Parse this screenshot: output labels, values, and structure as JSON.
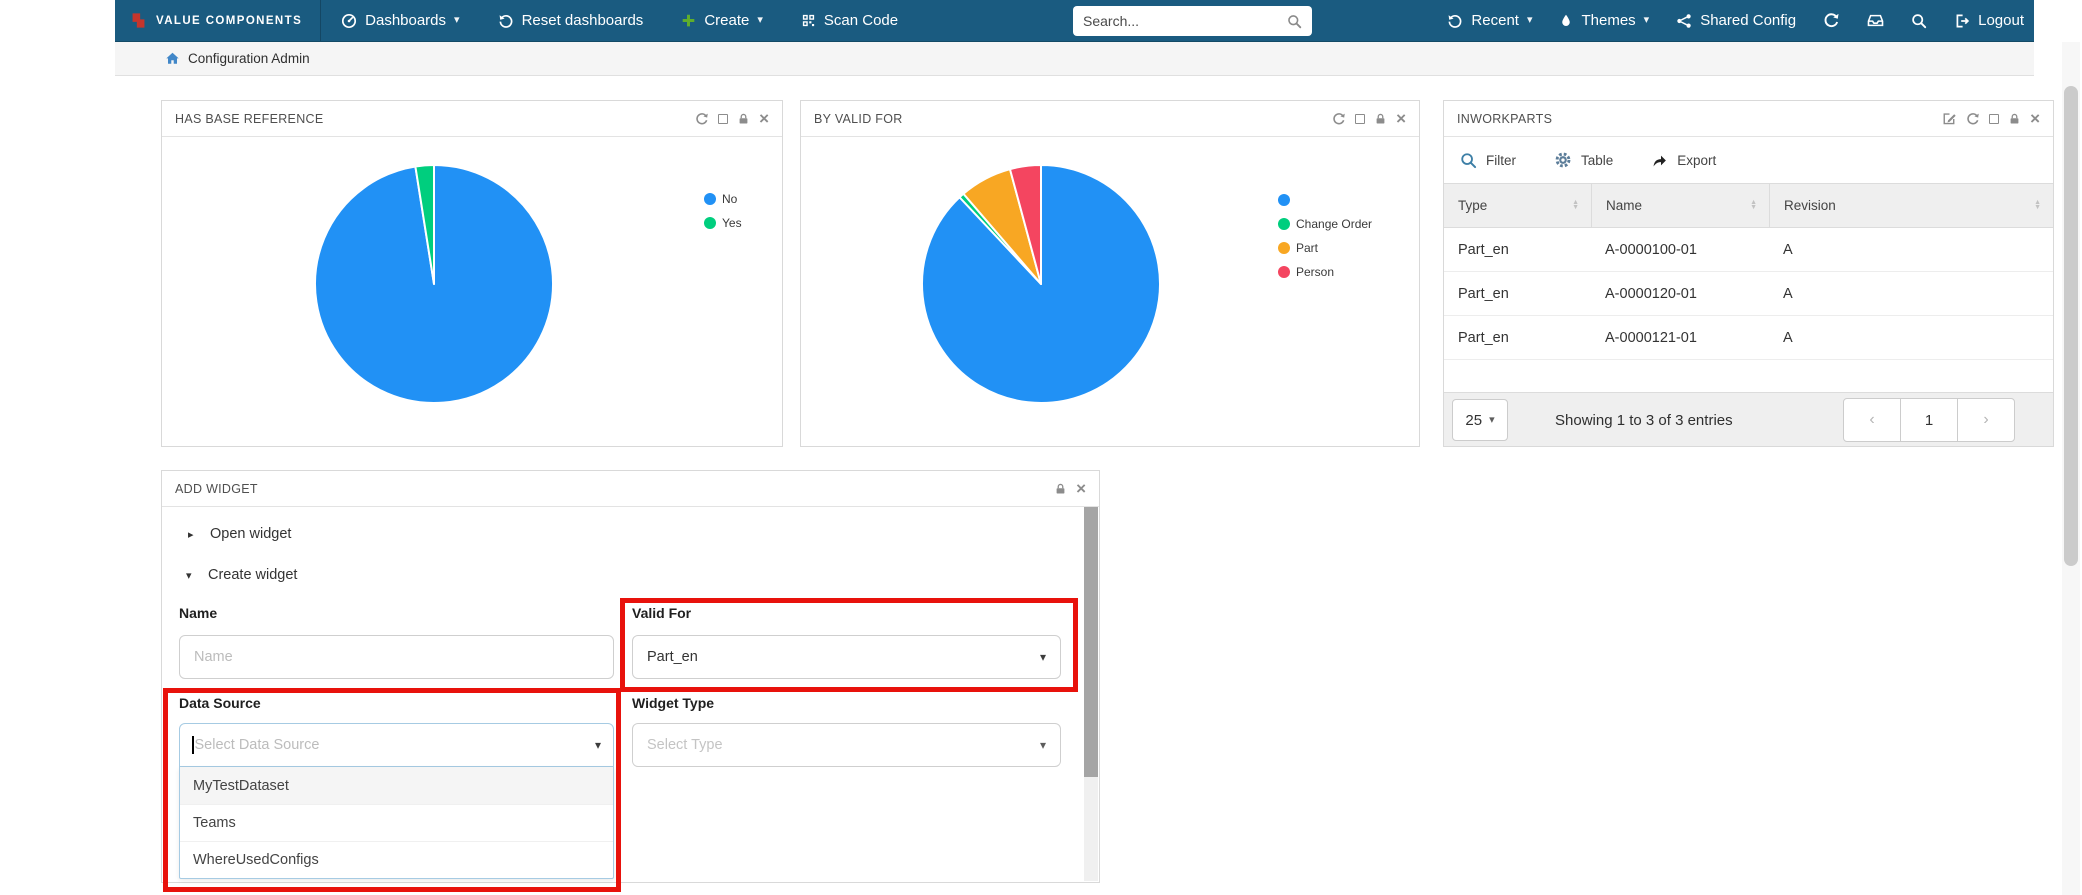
{
  "nav": {
    "brand": "VALUE COMPONENTS",
    "dashboards": "Dashboards",
    "reset_dashboards": "Reset dashboards",
    "create": "Create",
    "scan_code": "Scan Code",
    "search_placeholder": "Search...",
    "recent": "Recent",
    "themes": "Themes",
    "shared_config": "Shared Config",
    "logout": "Logout"
  },
  "breadcrumb": {
    "label": "Configuration Admin"
  },
  "glyphs": {
    "caret_down": "▾",
    "triangle_right": "▸",
    "triangle_down": "▾",
    "close": "×",
    "chevron_left": "‹",
    "chevron_right": "›",
    "sort_up": "▲",
    "sort_down": "▼"
  },
  "widgets": {
    "has_base_reference": {
      "title": "HAS BASE REFERENCE"
    },
    "by_valid_for": {
      "title": "BY VALID FOR"
    },
    "inworkparts": {
      "title": "INWORKPARTS",
      "toolbar": {
        "filter": "Filter",
        "table": "Table",
        "export": "Export"
      },
      "columns": [
        "Type",
        "Name",
        "Revision"
      ],
      "rows": [
        [
          "Part_en",
          "A-0000100-01",
          "A"
        ],
        [
          "Part_en",
          "A-0000120-01",
          "A"
        ],
        [
          "Part_en",
          "A-0000121-01",
          "A"
        ]
      ],
      "page_size": "25",
      "showing": "Showing 1 to 3 of 3 entries",
      "page": "1"
    },
    "add_widget": {
      "title": "ADD WIDGET",
      "open_widget": "Open widget",
      "create_widget": "Create widget",
      "name_label": "Name",
      "name_placeholder": "Name",
      "valid_for_label": "Valid For",
      "valid_for_value": "Part_en",
      "data_source_label": "Data Source",
      "data_source_placeholder": "Select Data Source",
      "data_source_options": [
        "MyTestDataset",
        "Teams",
        "WhereUsedConfigs"
      ],
      "widget_type_label": "Widget Type",
      "widget_type_placeholder": "Select Type"
    }
  },
  "chart_data": [
    {
      "type": "pie",
      "title": "HAS BASE REFERENCE",
      "labels": [
        "No",
        "Yes"
      ],
      "values": [
        97.5,
        2.5
      ],
      "colors": [
        "#2191f5",
        "#00ce7e"
      ],
      "legend_position": "right",
      "start_angle_deg": 0,
      "direction": "clockwise"
    },
    {
      "type": "pie",
      "title": "BY VALID FOR",
      "labels": [
        "",
        "Change Order",
        "Part",
        "Person"
      ],
      "values": [
        88.0,
        0.7,
        7.1,
        4.2
      ],
      "colors": [
        "#2191f5",
        "#00ce7e",
        "#f8a723",
        "#f44560"
      ],
      "legend_position": "right",
      "start_angle_deg": 0,
      "direction": "clockwise"
    }
  ],
  "colors": {
    "navbar": "#1a5b80",
    "annotation": "#e8120c",
    "pie_blue": "#2191f5",
    "pie_green": "#00ce7e",
    "pie_orange": "#f8a723",
    "pie_red": "#f44560",
    "create_plus": "#5fae2c",
    "brand_logo": "#c5352c"
  }
}
